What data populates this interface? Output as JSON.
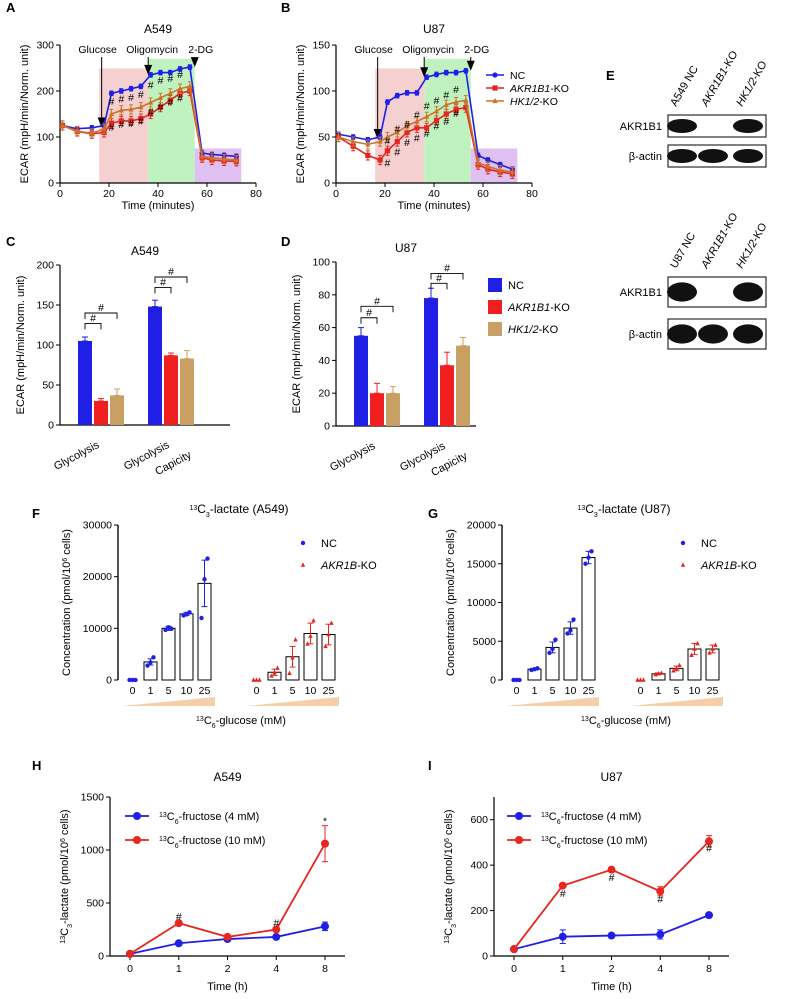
{
  "figure": {
    "panel_letters": [
      "A",
      "B",
      "C",
      "D",
      "E",
      "F",
      "G",
      "H",
      "I"
    ]
  },
  "chart_data": [
    {
      "id": "A",
      "type": "line",
      "title": "A549",
      "xlabel": "Time (minutes)",
      "ylabel": "ECAR (mpH/min/Norm. unit)",
      "xlim": [
        0,
        80
      ],
      "ylim": [
        0,
        300
      ],
      "xticks": [
        0,
        20,
        40,
        60,
        80
      ],
      "yticks": [
        0,
        100,
        200,
        300
      ],
      "injections": [
        {
          "label": "Glucose",
          "x": 17
        },
        {
          "label": "Oligomycin",
          "x": 36
        },
        {
          "label": "2-DG",
          "x": 55
        }
      ],
      "shaded_phases": [
        {
          "x": [
            16,
            36
          ],
          "color": "#f2c8c8"
        },
        {
          "x": [
            36,
            55
          ],
          "color": "#b5f0b5"
        },
        {
          "x": [
            55,
            74
          ],
          "color": "#d9b5f0"
        }
      ],
      "x": [
        1,
        7,
        13,
        18,
        21,
        25,
        29,
        33,
        37,
        41,
        45,
        49,
        53,
        58,
        62,
        67,
        72
      ],
      "series": [
        {
          "name": "NC",
          "color": "#1f1fe6",
          "marker": "circle",
          "values": [
            125,
            118,
            120,
            125,
            195,
            200,
            205,
            210,
            235,
            240,
            240,
            248,
            252,
            65,
            62,
            60,
            58
          ]
        },
        {
          "name": "AKR1B1-KO",
          "color": "#e6261f",
          "marker": "square",
          "values": [
            125,
            112,
            107,
            110,
            130,
            135,
            135,
            140,
            150,
            165,
            180,
            195,
            200,
            55,
            50,
            48,
            47
          ]
        },
        {
          "name": "HK1/2-KO",
          "color": "#c8752a",
          "marker": "triangle",
          "values": [
            125,
            113,
            108,
            118,
            150,
            158,
            160,
            165,
            175,
            185,
            195,
            205,
            210,
            58,
            55,
            52,
            50
          ]
        }
      ],
      "annotations": [
        {
          "text": "#",
          "x": 21,
          "y": 170
        },
        {
          "text": "#",
          "x": 25,
          "y": 175
        },
        {
          "text": "#",
          "x": 29,
          "y": 178
        },
        {
          "text": "#",
          "x": 33,
          "y": 185
        },
        {
          "text": "#",
          "x": 21,
          "y": 113
        },
        {
          "text": "#",
          "x": 25,
          "y": 120
        },
        {
          "text": "#",
          "x": 29,
          "y": 122
        },
        {
          "text": "#",
          "x": 33,
          "y": 127
        },
        {
          "text": "#",
          "x": 37,
          "y": 205
        },
        {
          "text": "#",
          "x": 41,
          "y": 215
        },
        {
          "text": "#",
          "x": 45,
          "y": 220
        },
        {
          "text": "#",
          "x": 49,
          "y": 228
        },
        {
          "text": "#",
          "x": 37,
          "y": 147
        },
        {
          "text": "#",
          "x": 41,
          "y": 158
        },
        {
          "text": "#",
          "x": 45,
          "y": 168
        },
        {
          "text": "#",
          "x": 49,
          "y": 177
        }
      ]
    },
    {
      "id": "B",
      "type": "line",
      "title": "U87",
      "xlabel": "Time (minutes)",
      "ylabel": "ECAR (mpH/min/Norm. unit)",
      "xlim": [
        0,
        80
      ],
      "ylim": [
        0,
        150
      ],
      "xticks": [
        0,
        20,
        40,
        60,
        80
      ],
      "yticks": [
        0,
        50,
        100,
        150
      ],
      "injections": [
        {
          "label": "Glucose",
          "x": 17
        },
        {
          "label": "Oligomycin",
          "x": 36
        },
        {
          "label": "2-DG",
          "x": 55
        }
      ],
      "shaded_phases": [
        {
          "x": [
            16,
            36
          ],
          "color": "#f2c8c8"
        },
        {
          "x": [
            36,
            55
          ],
          "color": "#b5f0b5"
        },
        {
          "x": [
            55,
            74
          ],
          "color": "#d9b5f0"
        }
      ],
      "x": [
        1,
        7,
        13,
        18,
        21,
        25,
        29,
        33,
        37,
        41,
        45,
        49,
        53,
        58,
        62,
        67,
        72
      ],
      "series": [
        {
          "name": "NC",
          "color": "#1f1fe6",
          "marker": "circle",
          "values": [
            53,
            50,
            47,
            50,
            88,
            95,
            98,
            98,
            115,
            118,
            120,
            120,
            122,
            30,
            25,
            20,
            15
          ]
        },
        {
          "name": "AKR1B1-KO",
          "color": "#e6261f",
          "marker": "square",
          "values": [
            50,
            40,
            30,
            25,
            35,
            45,
            55,
            60,
            60,
            68,
            75,
            80,
            82,
            20,
            15,
            12,
            10
          ]
        },
        {
          "name": "HK1/2-KO",
          "color": "#c8752a",
          "marker": "triangle",
          "values": [
            50,
            45,
            42,
            45,
            50,
            55,
            62,
            67,
            72,
            78,
            85,
            88,
            90,
            22,
            18,
            14,
            12
          ]
        }
      ],
      "annotations": [
        {
          "text": "#",
          "x": 21,
          "y": 42
        },
        {
          "text": "#",
          "x": 25,
          "y": 55
        },
        {
          "text": "#",
          "x": 29,
          "y": 60
        },
        {
          "text": "#",
          "x": 33,
          "y": 70
        },
        {
          "text": "#",
          "x": 21,
          "y": 18
        },
        {
          "text": "#",
          "x": 25,
          "y": 30
        },
        {
          "text": "#",
          "x": 29,
          "y": 40
        },
        {
          "text": "#",
          "x": 33,
          "y": 45
        },
        {
          "text": "#",
          "x": 37,
          "y": 80
        },
        {
          "text": "#",
          "x": 41,
          "y": 86
        },
        {
          "text": "#",
          "x": 45,
          "y": 92
        },
        {
          "text": "#",
          "x": 49,
          "y": 98
        },
        {
          "text": "#",
          "x": 37,
          "y": 50
        },
        {
          "text": "#",
          "x": 41,
          "y": 58
        },
        {
          "text": "#",
          "x": 45,
          "y": 63
        },
        {
          "text": "#",
          "x": 49,
          "y": 72
        }
      ]
    },
    {
      "id": "C",
      "type": "bar",
      "title": "A549",
      "ylabel": "ECAR (mpH/min/Norm. unit)",
      "ylim": [
        0,
        200
      ],
      "yticks": [
        0,
        50,
        100,
        150,
        200
      ],
      "categories": [
        "Glycolysis",
        "Glycolysis Capicity"
      ],
      "series": [
        {
          "name": "NC",
          "color": "#1f1fe6",
          "values": [
            105,
            148
          ],
          "errors": [
            5,
            8
          ]
        },
        {
          "name": "AKR1B1-KO",
          "color": "#f02020",
          "values": [
            30,
            87
          ],
          "errors": [
            3,
            3
          ]
        },
        {
          "name": "HK1/2-KO",
          "color": "#c8a063",
          "values": [
            37,
            83
          ],
          "errors": [
            8,
            10
          ]
        }
      ],
      "brackets": [
        {
          "group": 0,
          "from": 0,
          "to": 1,
          "y": 127,
          "text": "#"
        },
        {
          "group": 0,
          "from": 0,
          "to": 2,
          "y": 140,
          "text": "#"
        },
        {
          "group": 1,
          "from": 0,
          "to": 1,
          "y": 172,
          "text": "#"
        },
        {
          "group": 1,
          "from": 0,
          "to": 2,
          "y": 185,
          "text": "#"
        }
      ]
    },
    {
      "id": "D",
      "type": "bar",
      "title": "U87",
      "ylabel": "ECAR (mpH/min/Norm. unit)",
      "ylim": [
        0,
        100
      ],
      "yticks": [
        0,
        20,
        40,
        60,
        80,
        100
      ],
      "categories": [
        "Glycolysis",
        "Glycolysis Capicity"
      ],
      "series": [
        {
          "name": "NC",
          "color": "#1f1fe6",
          "values": [
            55,
            78
          ],
          "errors": [
            5,
            6
          ]
        },
        {
          "name": "AKR1B1-KO",
          "color": "#f02020",
          "values": [
            20,
            37
          ],
          "errors": [
            6,
            8
          ]
        },
        {
          "name": "HK1/2-KO",
          "color": "#c8a063",
          "values": [
            20,
            49
          ],
          "errors": [
            4,
            5
          ]
        }
      ],
      "legend": [
        "NC",
        "AKR1B1-KO",
        "HK1/2-KO"
      ],
      "brackets": [
        {
          "group": 0,
          "from": 0,
          "to": 1,
          "y": 66,
          "text": "#"
        },
        {
          "group": 0,
          "from": 0,
          "to": 2,
          "y": 73,
          "text": "#"
        },
        {
          "group": 1,
          "from": 0,
          "to": 1,
          "y": 87,
          "text": "#"
        },
        {
          "group": 1,
          "from": 0,
          "to": 2,
          "y": 93,
          "text": "#"
        }
      ]
    },
    {
      "id": "F",
      "type": "bar",
      "title": "13C3-lactate (A549)",
      "xlabel": "13C6-glucose (mM)",
      "ylabel": "Concentration (pmol/10^6 cells)",
      "ylim": [
        0,
        30000
      ],
      "yticks": [
        0,
        10000,
        20000,
        30000
      ],
      "categories": [
        "0",
        "1",
        "5",
        "10",
        "25"
      ],
      "series": [
        {
          "name": "NC",
          "color": "#1f1fe6",
          "marker": "circle",
          "values": [
            0,
            3500,
            10000,
            12800,
            18700
          ],
          "errors": [
            0,
            600,
            400,
            300,
            4500
          ],
          "points": [
            [
              0,
              0,
              0
            ],
            [
              2800,
              3400,
              4400
            ],
            [
              9700,
              10200,
              9900
            ],
            [
              12500,
              12700,
              13100
            ],
            [
              12000,
              19500,
              23500
            ]
          ]
        },
        {
          "name": "AKR1B-KO",
          "color": "#e6261f",
          "marker": "triangle",
          "values": [
            0,
            1500,
            4500,
            9000,
            8800
          ],
          "errors": [
            0,
            600,
            2000,
            2000,
            2000
          ],
          "points": [
            [
              0,
              0,
              0
            ],
            [
              800,
              1400,
              2300
            ],
            [
              1300,
              4300,
              7800
            ],
            [
              7000,
              8500,
              11500
            ],
            [
              6500,
              8800,
              11000
            ]
          ]
        }
      ],
      "legend": [
        "NC",
        "AKR1B-KO"
      ]
    },
    {
      "id": "G",
      "type": "bar",
      "title": "13C3-lactate (U87)",
      "xlabel": "13C6-glucose (mM)",
      "ylabel": "Concentration (pmol/10^6 cells)",
      "ylim": [
        0,
        20000
      ],
      "yticks": [
        0,
        5000,
        10000,
        15000,
        20000
      ],
      "categories": [
        "0",
        "1",
        "5",
        "10",
        "25"
      ],
      "series": [
        {
          "name": "NC",
          "color": "#1f1fe6",
          "marker": "circle",
          "values": [
            0,
            1400,
            4200,
            6700,
            15800
          ],
          "errors": [
            0,
            100,
            700,
            800,
            800
          ],
          "points": [
            [
              0,
              0,
              0
            ],
            [
              1300,
              1400,
              1500
            ],
            [
              3500,
              4000,
              5200
            ],
            [
              6000,
              6400,
              7800
            ],
            [
              15000,
              15800,
              16600
            ]
          ]
        },
        {
          "name": "AKR1B-KO",
          "color": "#e6261f",
          "marker": "triangle",
          "values": [
            0,
            800,
            1500,
            4000,
            4000
          ],
          "errors": [
            0,
            100,
            300,
            700,
            500
          ],
          "points": [
            [
              0,
              0,
              0
            ],
            [
              700,
              800,
              900
            ],
            [
              1200,
              1500,
              1900
            ],
            [
              3200,
              4000,
              4700
            ],
            [
              3500,
              4000,
              4500
            ]
          ]
        }
      ],
      "legend": [
        "NC",
        "AKR1B-KO"
      ]
    },
    {
      "id": "H",
      "type": "line",
      "title": "A549",
      "xlabel": "Time (h)",
      "ylabel": "13C3-lactate (pmol/10^6 cells)",
      "ylim": [
        0,
        1500
      ],
      "yticks": [
        0,
        500,
        1000,
        1500
      ],
      "categories": [
        "0",
        "1",
        "2",
        "4",
        "8"
      ],
      "series": [
        {
          "name": "13C6-fructose (4 mM)",
          "color": "#1f1fe6",
          "values": [
            20,
            120,
            160,
            180,
            280
          ],
          "errors": [
            0,
            10,
            10,
            10,
            40
          ]
        },
        {
          "name": "13C6-fructose (10 mM)",
          "color": "#e6261f",
          "values": [
            20,
            310,
            180,
            250,
            1060
          ],
          "errors": [
            0,
            15,
            10,
            15,
            170
          ]
        }
      ],
      "annotations": [
        {
          "text": "#",
          "category": 1,
          "y": 340
        },
        {
          "text": "#",
          "category": 3,
          "y": 280
        },
        {
          "text": "*",
          "category": 4,
          "y": 1240
        }
      ]
    },
    {
      "id": "I",
      "type": "line",
      "title": "U87",
      "xlabel": "Time (h)",
      "ylabel": "13C3-lactate (pmol/10^6 cells)",
      "ylim": [
        0,
        700
      ],
      "yticks": [
        0,
        200,
        400,
        600
      ],
      "categories": [
        "0",
        "1",
        "2",
        "4",
        "8"
      ],
      "series": [
        {
          "name": "13C6-fructose (4 mM)",
          "color": "#1f1fe6",
          "values": [
            30,
            85,
            90,
            95,
            180
          ],
          "errors": [
            0,
            30,
            10,
            20,
            5
          ]
        },
        {
          "name": "13C6-fructose (10 mM)",
          "color": "#e6261f",
          "values": [
            30,
            310,
            380,
            285,
            505
          ],
          "errors": [
            0,
            8,
            8,
            20,
            25
          ]
        }
      ],
      "annotations": [
        {
          "text": "#",
          "category": 1,
          "y": 260
        },
        {
          "text": "#",
          "category": 2,
          "y": 330
        },
        {
          "text": "#",
          "category": 3,
          "y": 235
        },
        {
          "text": "#",
          "category": 4,
          "y": 460
        }
      ]
    }
  ],
  "western_blots": [
    {
      "id": "E1",
      "lanes": [
        "A549 NC",
        "AKR1B1-KO",
        "HK1/2-KO"
      ],
      "rows": [
        {
          "label": "AKR1B1",
          "bands": [
            1,
            0,
            1
          ]
        },
        {
          "label": "β-actin",
          "bands": [
            1,
            1,
            1
          ]
        }
      ]
    },
    {
      "id": "E2",
      "lanes": [
        "U87 NC",
        "AKR1B1-KO",
        "HK1/2-KO"
      ],
      "rows": [
        {
          "label": "AKR1B1",
          "bands": [
            1,
            0,
            1
          ]
        },
        {
          "label": "β-actin",
          "bands": [
            1,
            1,
            1
          ]
        }
      ]
    }
  ]
}
